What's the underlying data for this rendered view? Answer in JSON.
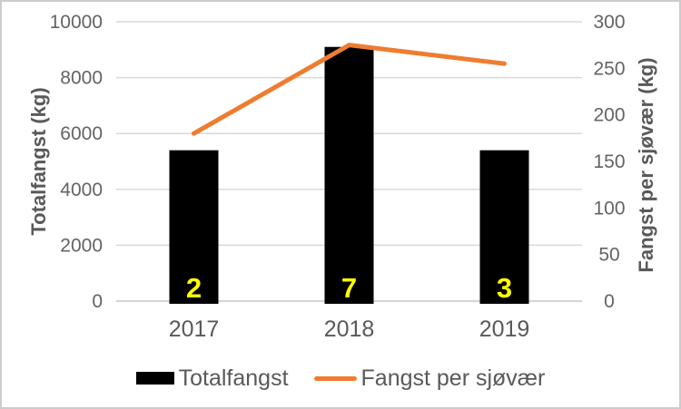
{
  "chart_data": {
    "type": "bar-line-combo",
    "categories": [
      "2017",
      "2018",
      "2019"
    ],
    "series": [
      {
        "name": "Totalfangst",
        "type": "bar",
        "axis": "left",
        "color": "#000000",
        "values": [
          5400,
          9100,
          5400
        ]
      },
      {
        "name": "Fangst per sjøvær",
        "type": "line",
        "axis": "right",
        "color": "#ED7D31",
        "values": [
          180,
          275,
          255
        ]
      }
    ],
    "bar_labels": {
      "values": [
        "2",
        "7",
        "3"
      ],
      "color": "#FFFF00"
    },
    "left_axis": {
      "title": "Totalfangst (kg)",
      "min": 0,
      "max": 10000,
      "tick_step": 2000,
      "ticks": [
        0,
        2000,
        4000,
        6000,
        8000,
        10000
      ]
    },
    "right_axis": {
      "title": "Fangst per sjøvær (kg)",
      "min": 0,
      "max": 300,
      "tick_step": 50,
      "ticks": [
        0,
        50,
        100,
        150,
        200,
        250,
        300
      ]
    },
    "grid": true,
    "gridline_color": "#d9d9d9",
    "axis_line_color": "#d6d6d6",
    "tick_color": "#636363",
    "text_color": "#595959",
    "legend": {
      "position": "bottom",
      "items": [
        {
          "label": "Totalfangst",
          "swatch": "bar",
          "color": "#000000"
        },
        {
          "label": "Fangst per sjøvær",
          "swatch": "line",
          "color": "#ED7D31"
        }
      ]
    }
  }
}
